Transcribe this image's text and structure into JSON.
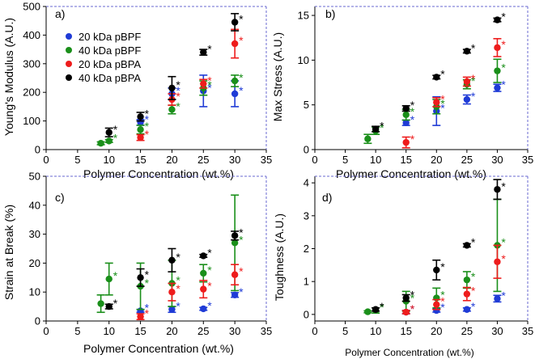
{
  "figure": {
    "colors": {
      "blue": "#1f3bd6",
      "green": "#1a8f1a",
      "red": "#ee1c1c",
      "black": "#000000",
      "axis_top": "#6a6ad0"
    }
  },
  "chart_data": [
    {
      "type": "scatter",
      "panel_label": "a)",
      "xlabel": "Polymer Concentration (wt.%)",
      "ylabel": "Young's Modulus (A.U.)",
      "xlim": [
        0,
        35
      ],
      "ylim": [
        0,
        500
      ],
      "xticks": [
        "0",
        "5",
        "10",
        "15",
        "20",
        "25",
        "30",
        "35"
      ],
      "yticks": [
        "0",
        "100",
        "200",
        "300",
        "400",
        "500"
      ],
      "legend": {
        "placement": "top-left",
        "entries": [
          "20 kDa pBPF",
          "40 kDa pBPF",
          "20 kDa pBPA",
          "40 kDa pBPA"
        ]
      },
      "series": [
        {
          "name": "20 kDa pBPF",
          "color": "blue",
          "x": [
            15,
            20,
            25,
            30
          ],
          "y": [
            95,
            195,
            205,
            195
          ],
          "err": [
            10,
            20,
            55,
            45
          ],
          "sig": [
            true,
            true,
            true,
            true
          ]
        },
        {
          "name": "40 kDa pBPF",
          "color": "green",
          "x": [
            8.7,
            10,
            15,
            20,
            25,
            30
          ],
          "y": [
            22,
            30,
            70,
            140,
            215,
            240
          ],
          "err": [
            5,
            5,
            15,
            15,
            25,
            20
          ],
          "sig": [
            false,
            true,
            true,
            true,
            true,
            true
          ]
        },
        {
          "name": "20 kDa pBPA",
          "color": "red",
          "x": [
            15,
            20,
            25,
            30
          ],
          "y": [
            42,
            175,
            230,
            370
          ],
          "err": [
            10,
            20,
            15,
            50
          ],
          "sig": [
            true,
            true,
            true,
            true
          ]
        },
        {
          "name": "40 kDa pBPA",
          "color": "black",
          "x": [
            10,
            15,
            20,
            25,
            30
          ],
          "y": [
            60,
            115,
            215,
            340,
            445
          ],
          "err": [
            15,
            15,
            40,
            10,
            30
          ],
          "sig": [
            true,
            true,
            true,
            true,
            true
          ]
        }
      ]
    },
    {
      "type": "scatter",
      "panel_label": "b)",
      "xlabel": "Polymer Concentration (wt.%)",
      "ylabel": "Max Stress (A.U.)",
      "xlim": [
        0,
        35
      ],
      "ylim": [
        0,
        16
      ],
      "xticks": [
        "0",
        "5",
        "10",
        "15",
        "20",
        "25",
        "30",
        "35"
      ],
      "yticks": [
        "0",
        "5",
        "10",
        "15"
      ],
      "series": [
        {
          "name": "20 kDa pBPF",
          "color": "blue",
          "x": [
            15,
            20,
            25,
            30
          ],
          "y": [
            3.0,
            4.3,
            5.6,
            6.9
          ],
          "err": [
            0.3,
            1.6,
            0.5,
            0.4
          ],
          "sig": [
            true,
            true,
            true,
            true
          ]
        },
        {
          "name": "40 kDa pBPF",
          "color": "green",
          "x": [
            8.7,
            10,
            15,
            20,
            25,
            30
          ],
          "y": [
            1.2,
            2.1,
            3.9,
            4.8,
            7.3,
            8.8
          ],
          "err": [
            0.5,
            0.4,
            0.6,
            0.8,
            0.5,
            1.3
          ],
          "sig": [
            false,
            true,
            true,
            true,
            true,
            true
          ]
        },
        {
          "name": "20 kDa pBPA",
          "color": "red",
          "x": [
            15,
            20,
            25,
            30
          ],
          "y": [
            0.8,
            5.3,
            7.6,
            11.4
          ],
          "err": [
            0.6,
            0.5,
            0.5,
            1.0
          ],
          "sig": [
            true,
            true,
            true,
            true
          ]
        },
        {
          "name": "40 kDa pBPA",
          "color": "black",
          "x": [
            10,
            15,
            20,
            25,
            30
          ],
          "y": [
            2.3,
            4.6,
            8.1,
            11.0,
            14.5
          ],
          "err": [
            0.3,
            0.3,
            0.2,
            0.2,
            0.2
          ],
          "sig": [
            true,
            true,
            true,
            true,
            true
          ]
        }
      ]
    },
    {
      "type": "scatter",
      "panel_label": "c)",
      "xlabel": "Polymer Concentration (wt.%)",
      "ylabel": "Strain at Break (%)",
      "xlim": [
        0,
        35
      ],
      "ylim": [
        0,
        50
      ],
      "xticks": [
        "0",
        "5",
        "10",
        "15",
        "20",
        "25",
        "30",
        "35"
      ],
      "yticks": [
        "0",
        "10",
        "20",
        "30",
        "40",
        "50"
      ],
      "series": [
        {
          "name": "20 kDa pBPF",
          "color": "blue",
          "x": [
            15,
            20,
            25,
            30
          ],
          "y": [
            3.5,
            4.0,
            4.2,
            9.0
          ],
          "err": [
            0.5,
            1.0,
            0.5,
            0.8
          ],
          "sig": [
            true,
            true,
            true,
            true
          ]
        },
        {
          "name": "40 kDa pBPF",
          "color": "green",
          "x": [
            8.7,
            10,
            15,
            20,
            25,
            30
          ],
          "y": [
            6.0,
            14.5,
            12.0,
            13.0,
            16.5,
            27.0
          ],
          "err": [
            3.0,
            5.5,
            8.0,
            8.0,
            3.0,
            16.5
          ],
          "sig": [
            false,
            true,
            true,
            true,
            true,
            true
          ]
        },
        {
          "name": "20 kDa pBPA",
          "color": "red",
          "x": [
            15,
            20,
            25,
            30
          ],
          "y": [
            1.5,
            10.0,
            11.0,
            16.0
          ],
          "err": [
            1.0,
            3.0,
            3.0,
            3.5
          ],
          "sig": [
            true,
            true,
            true,
            true
          ]
        },
        {
          "name": "40 kDa pBPA",
          "color": "black",
          "x": [
            10,
            15,
            20,
            25,
            30
          ],
          "y": [
            5.0,
            15.0,
            21.0,
            22.5,
            29.5
          ],
          "err": [
            0.8,
            3.0,
            4.0,
            0.5,
            1.5
          ],
          "sig": [
            true,
            true,
            true,
            true,
            true
          ]
        }
      ]
    },
    {
      "type": "scatter",
      "panel_label": "d)",
      "xlabel": "Polymer Concentration (wt.%)",
      "ylabel": "Toughness (A.U.)",
      "xlim": [
        0,
        35
      ],
      "ylim": [
        -0.2,
        4.2
      ],
      "xticks": [
        "0",
        "5",
        "10",
        "15",
        "20",
        "25",
        "30",
        "35"
      ],
      "yticks": [
        "0",
        "1",
        "2",
        "3",
        "4"
      ],
      "series": [
        {
          "name": "20 kDa pBPF",
          "color": "blue",
          "x": [
            15,
            20,
            25,
            30
          ],
          "y": [
            0.07,
            0.12,
            0.15,
            0.48
          ],
          "err": [
            0.05,
            0.05,
            0.05,
            0.1
          ],
          "sig": [
            true,
            true,
            true,
            true
          ]
        },
        {
          "name": "40 kDa pBPF",
          "color": "green",
          "x": [
            8.7,
            10,
            15,
            20,
            25,
            30
          ],
          "y": [
            0.08,
            0.12,
            0.4,
            0.5,
            1.05,
            2.1
          ],
          "err": [
            0.03,
            0.08,
            0.3,
            0.3,
            0.25,
            1.4
          ],
          "sig": [
            false,
            true,
            true,
            true,
            true,
            true
          ]
        },
        {
          "name": "20 kDa pBPA",
          "color": "red",
          "x": [
            15,
            20,
            25,
            30
          ],
          "y": [
            0.07,
            0.3,
            0.62,
            1.6
          ],
          "err": [
            0.05,
            0.15,
            0.2,
            0.5
          ],
          "sig": [
            true,
            true,
            true,
            true
          ]
        },
        {
          "name": "40 kDa pBPA",
          "color": "black",
          "x": [
            10,
            15,
            20,
            25,
            30
          ],
          "y": [
            0.15,
            0.5,
            1.35,
            2.1,
            3.8
          ],
          "err": [
            0.05,
            0.1,
            0.3,
            0.05,
            0.3
          ],
          "sig": [
            true,
            true,
            true,
            true,
            true
          ]
        }
      ]
    }
  ]
}
